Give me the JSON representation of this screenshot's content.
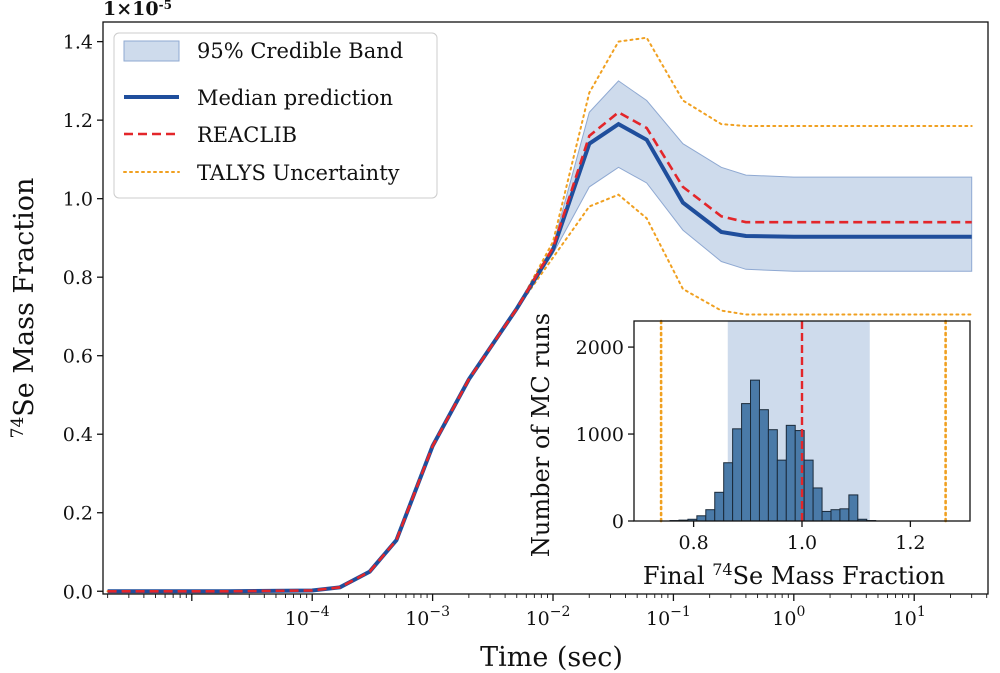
{
  "chart_data": [
    {
      "type": "line",
      "title": "",
      "scale_label": "1×10",
      "scale_exponent": "-5",
      "xlabel": "Time (sec)",
      "ylabel_sup": "74",
      "ylabel_main": "Se Mass Fraction",
      "xscale": "log",
      "xlim": [
        1.83e-06,
        41
      ],
      "ylim": [
        -0.007,
        1.45
      ],
      "xticks": [
        {
          "v": 0.0001,
          "base": "10",
          "exp": "−4"
        },
        {
          "v": 0.001,
          "base": "10",
          "exp": "−3"
        },
        {
          "v": 0.01,
          "base": "10",
          "exp": "−2"
        },
        {
          "v": 0.1,
          "base": "10",
          "exp": "−1"
        },
        {
          "v": 1,
          "base": "10",
          "exp": "0"
        },
        {
          "v": 10,
          "base": "10",
          "exp": "1"
        }
      ],
      "yticks": [
        {
          "v": 0.0,
          "label": "0.0"
        },
        {
          "v": 0.2,
          "label": "0.2"
        },
        {
          "v": 0.4,
          "label": "0.4"
        },
        {
          "v": 0.6,
          "label": "0.6"
        },
        {
          "v": 0.8,
          "label": "0.8"
        },
        {
          "v": 1.0,
          "label": "1.0"
        },
        {
          "v": 1.2,
          "label": "1.2"
        },
        {
          "v": 1.4,
          "label": "1.4"
        }
      ],
      "legend_position": "top-left",
      "x": [
        2e-06,
        2e-05,
        0.0001,
        0.00017,
        0.0003,
        0.0005,
        0.001,
        0.002,
        0.005,
        0.01,
        0.02,
        0.035,
        0.06,
        0.12,
        0.25,
        0.4,
        1,
        5,
        30
      ],
      "series": [
        {
          "name": "95% Credible Band",
          "kind": "band",
          "color": "#aec3e0",
          "lower": [
            0,
            0,
            0.002,
            0.01,
            0.05,
            0.13,
            0.37,
            0.54,
            0.72,
            0.86,
            1.03,
            1.08,
            1.04,
            0.92,
            0.84,
            0.82,
            0.815,
            0.815,
            0.815
          ],
          "upper": [
            0,
            0,
            0.002,
            0.01,
            0.05,
            0.13,
            0.37,
            0.54,
            0.72,
            0.88,
            1.22,
            1.3,
            1.25,
            1.14,
            1.08,
            1.06,
            1.055,
            1.055,
            1.055
          ]
        },
        {
          "name": "Median prediction",
          "kind": "solid",
          "color": "#1f4e9c",
          "values": [
            0,
            0,
            0.002,
            0.01,
            0.05,
            0.13,
            0.37,
            0.54,
            0.72,
            0.87,
            1.14,
            1.19,
            1.15,
            0.99,
            0.915,
            0.905,
            0.903,
            0.903,
            0.903
          ]
        },
        {
          "name": "REACLIB",
          "kind": "dashed",
          "color": "#e3262a",
          "values": [
            0,
            0,
            0.002,
            0.01,
            0.05,
            0.13,
            0.37,
            0.54,
            0.72,
            0.875,
            1.16,
            1.22,
            1.18,
            1.03,
            0.955,
            0.94,
            0.94,
            0.94,
            0.94
          ]
        },
        {
          "name": "TALYS Uncertainty",
          "kind": "dotted",
          "color": "#f0a020",
          "upper": [
            0,
            0,
            0.002,
            0.01,
            0.05,
            0.13,
            0.37,
            0.54,
            0.72,
            0.89,
            1.27,
            1.4,
            1.41,
            1.25,
            1.19,
            1.185,
            1.185,
            1.185,
            1.185
          ],
          "lower": [
            0,
            0,
            0.002,
            0.01,
            0.05,
            0.13,
            0.37,
            0.54,
            0.72,
            0.85,
            0.98,
            1.01,
            0.95,
            0.77,
            0.715,
            0.705,
            0.705,
            0.705,
            0.705
          ]
        }
      ]
    },
    {
      "type": "bar",
      "title": "",
      "xlabel_pre": "Final ",
      "xlabel_sup": "74",
      "xlabel_post": "Se Mass Fraction",
      "ylabel": "Number of MC runs",
      "xlim": [
        0.69,
        1.31
      ],
      "ylim": [
        0,
        2300
      ],
      "xticks": [
        {
          "v": 0.8,
          "label": "0.8"
        },
        {
          "v": 1.0,
          "label": "1.0"
        },
        {
          "v": 1.2,
          "label": "1.2"
        }
      ],
      "yticks": [
        {
          "v": 0,
          "label": "0"
        },
        {
          "v": 1000,
          "label": "1000"
        },
        {
          "v": 2000,
          "label": "2000"
        }
      ],
      "band": [
        0.863,
        1.125
      ],
      "reaclib_line": 1.0,
      "talys_lines": [
        0.74,
        1.265
      ],
      "bin_width": 0.0165,
      "bin_start": 0.7565,
      "counts": [
        5,
        10,
        20,
        60,
        130,
        330,
        670,
        1060,
        1350,
        1620,
        1280,
        1050,
        700,
        1100,
        1040,
        700,
        380,
        110,
        130,
        140,
        300,
        20,
        5
      ]
    }
  ]
}
